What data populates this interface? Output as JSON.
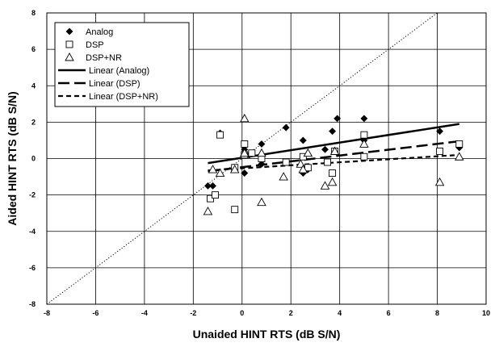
{
  "chart_data": {
    "type": "scatter",
    "title": "",
    "xlabel": "Unaided HINT RTS (dB S/N)",
    "ylabel": "Aided HINT RTS (dB S/N)",
    "xlim": [
      -8,
      10
    ],
    "ylim": [
      -8,
      8
    ],
    "x_ticks": [
      -8,
      -6,
      -4,
      -2,
      0,
      2,
      4,
      6,
      8,
      10
    ],
    "y_ticks": [
      -8,
      -6,
      -4,
      -2,
      0,
      2,
      4,
      6,
      8
    ],
    "grid": true,
    "legend_position": "top-left",
    "reference_line": {
      "style": "dotted",
      "from": [
        -8,
        -8
      ],
      "to": [
        8,
        8
      ]
    },
    "series": [
      {
        "name": "Analog",
        "kind": "scatter",
        "marker": "diamond",
        "points": [
          {
            "x": -1.4,
            "y": -1.5
          },
          {
            "x": -1.2,
            "y": -1.5
          },
          {
            "x": -0.9,
            "y": 1.4
          },
          {
            "x": 0.1,
            "y": 0.5
          },
          {
            "x": 0.1,
            "y": -0.8
          },
          {
            "x": 0.3,
            "y": 0.2
          },
          {
            "x": 0.8,
            "y": 0.8
          },
          {
            "x": 0.8,
            "y": -0.3
          },
          {
            "x": 1.8,
            "y": 1.7
          },
          {
            "x": 2.5,
            "y": 1.0
          },
          {
            "x": 2.5,
            "y": -0.8
          },
          {
            "x": 2.7,
            "y": -0.6
          },
          {
            "x": 3.4,
            "y": 0.5
          },
          {
            "x": 3.7,
            "y": 1.5
          },
          {
            "x": 3.9,
            "y": 2.2
          },
          {
            "x": 5.0,
            "y": 2.2
          },
          {
            "x": 5.0,
            "y": 1.0
          },
          {
            "x": 8.1,
            "y": 1.5
          },
          {
            "x": 8.9,
            "y": 0.6
          }
        ]
      },
      {
        "name": "DSP",
        "kind": "scatter",
        "marker": "square",
        "points": [
          {
            "x": -1.3,
            "y": -2.2
          },
          {
            "x": -1.1,
            "y": -2.0
          },
          {
            "x": -0.9,
            "y": 1.3
          },
          {
            "x": -0.3,
            "y": -0.5
          },
          {
            "x": 0.1,
            "y": 0.8
          },
          {
            "x": 0.1,
            "y": 0.2
          },
          {
            "x": 0.4,
            "y": 0.3
          },
          {
            "x": 0.8,
            "y": 0.0
          },
          {
            "x": -0.3,
            "y": -2.8
          },
          {
            "x": 1.8,
            "y": -0.2
          },
          {
            "x": 2.5,
            "y": 0.1
          },
          {
            "x": 2.7,
            "y": -0.5
          },
          {
            "x": 3.5,
            "y": -0.2
          },
          {
            "x": 3.8,
            "y": 0.4
          },
          {
            "x": 3.7,
            "y": -0.8
          },
          {
            "x": 5.0,
            "y": 1.3
          },
          {
            "x": 5.0,
            "y": 0.1
          },
          {
            "x": 8.1,
            "y": 0.4
          },
          {
            "x": 8.9,
            "y": 0.8
          }
        ]
      },
      {
        "name": "DSP+NR",
        "kind": "scatter",
        "marker": "triangle",
        "points": [
          {
            "x": -1.4,
            "y": -2.9
          },
          {
            "x": -1.2,
            "y": -0.6
          },
          {
            "x": -0.9,
            "y": -0.8
          },
          {
            "x": -0.3,
            "y": -0.6
          },
          {
            "x": 0.1,
            "y": 2.2
          },
          {
            "x": 0.1,
            "y": 0.3
          },
          {
            "x": 0.8,
            "y": 0.3
          },
          {
            "x": 0.8,
            "y": -2.4
          },
          {
            "x": 1.7,
            "y": -1.0
          },
          {
            "x": 2.4,
            "y": -0.3
          },
          {
            "x": 2.5,
            "y": -0.6
          },
          {
            "x": 2.7,
            "y": 0.3
          },
          {
            "x": 3.4,
            "y": -1.5
          },
          {
            "x": 3.7,
            "y": -1.3
          },
          {
            "x": 3.8,
            "y": 0.4
          },
          {
            "x": 5.0,
            "y": 0.8
          },
          {
            "x": 8.1,
            "y": -1.3
          },
          {
            "x": 8.9,
            "y": 0.1
          }
        ]
      },
      {
        "name": "Linear (Analog)",
        "kind": "line",
        "dash": "solid",
        "points": [
          {
            "x": -1.4,
            "y": -0.25
          },
          {
            "x": 8.9,
            "y": 1.9
          }
        ]
      },
      {
        "name": "Linear (DSP)",
        "kind": "line",
        "dash": "long-dash",
        "points": [
          {
            "x": -1.4,
            "y": -0.7
          },
          {
            "x": 8.9,
            "y": 0.95
          }
        ]
      },
      {
        "name": "Linear (DSP+NR)",
        "kind": "line",
        "dash": "short-dash",
        "points": [
          {
            "x": -1.4,
            "y": -0.65
          },
          {
            "x": 8.9,
            "y": 0.2
          }
        ]
      }
    ]
  }
}
